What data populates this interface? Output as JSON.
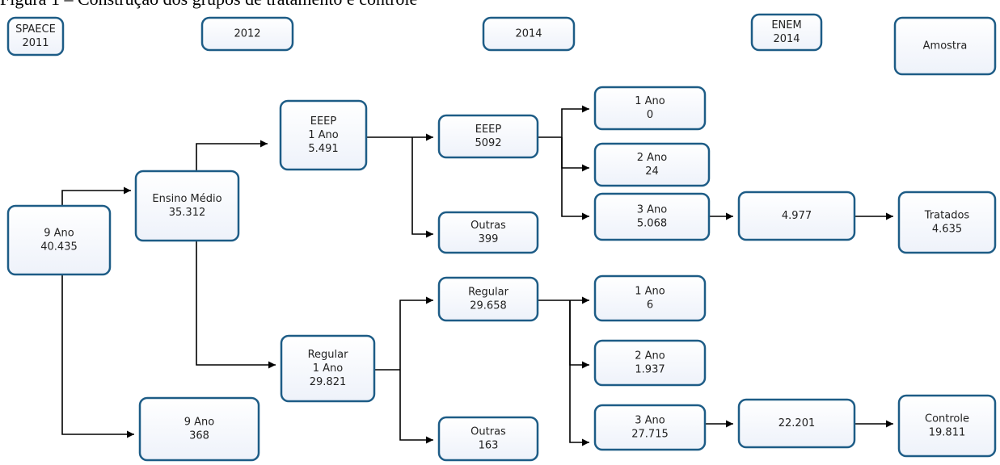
{
  "header": {
    "title": "Figura 1 – Construção dos grupos de tratamento e controle"
  },
  "columns": [
    {
      "lines": [
        "SPAECE",
        "2011"
      ]
    },
    {
      "lines": [
        "2012"
      ]
    },
    {
      "lines": [
        "2014"
      ]
    },
    {
      "lines": [
        "ENEM",
        "2014"
      ]
    },
    {
      "lines": [
        "Amostra"
      ]
    }
  ],
  "nodes": [
    {
      "lines": [
        "9 Ano",
        "40.435"
      ]
    },
    {
      "lines": [
        "Ensino Médio",
        "35.312"
      ]
    },
    {
      "lines": [
        "EEEP",
        "1 Ano",
        "5.491"
      ]
    },
    {
      "lines": [
        "EEEP",
        "5092"
      ]
    },
    {
      "lines": [
        "Outras",
        "399"
      ]
    },
    {
      "lines": [
        "1 Ano",
        "0"
      ]
    },
    {
      "lines": [
        "2 Ano",
        "24"
      ]
    },
    {
      "lines": [
        "3 Ano",
        "5.068"
      ]
    },
    {
      "lines": [
        "4.977"
      ]
    },
    {
      "lines": [
        "Tratados",
        "4.635"
      ]
    },
    {
      "lines": [
        "9 Ano",
        "368"
      ]
    },
    {
      "lines": [
        "Regular",
        "1 Ano",
        "29.821"
      ]
    },
    {
      "lines": [
        "Regular",
        "29.658"
      ]
    },
    {
      "lines": [
        "Outras",
        "163"
      ]
    },
    {
      "lines": [
        "1 Ano",
        "6"
      ]
    },
    {
      "lines": [
        "2 Ano",
        "1.937"
      ]
    },
    {
      "lines": [
        "3 Ano",
        "27.715"
      ]
    },
    {
      "lines": [
        "22.201"
      ]
    },
    {
      "lines": [
        "Controle",
        "19.811"
      ]
    }
  ]
}
